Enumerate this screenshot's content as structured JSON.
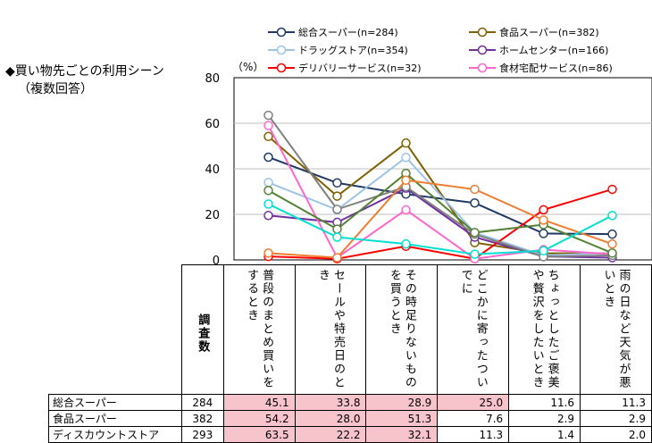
{
  "title_line1": "◆買い物先ごとの利用シーン",
  "title_line2": "（複数回答）",
  "unit": "（%）",
  "n_header": "調査数",
  "chart_data": {
    "type": "line",
    "ylim": [
      0,
      80
    ],
    "yticks": [
      "0",
      "20",
      "40",
      "60",
      "80"
    ],
    "categories": [
      "普段のまとめ買いをするとき",
      "セールや特売日のとき",
      "その時足りないものを買うとき",
      "どこかに寄ったついでに",
      "ちょっとしたご褒美や贅沢をしたいとき",
      "雨の日など天気が悪いとき"
    ],
    "series": [
      {
        "name": "総合スーパー(n=284)",
        "color": "#1f3864",
        "values": [
          45.1,
          33.8,
          28.9,
          25.0,
          11.6,
          11.3
        ]
      },
      {
        "name": "食品スーパー(n=382)",
        "color": "#7f6000",
        "values": [
          54.2,
          28.0,
          51.3,
          7.6,
          2.9,
          2.9
        ]
      },
      {
        "name": "ドラッグストア(n=354)",
        "color": "#9dc3e6",
        "values": [
          34.0,
          22.0,
          45.0,
          12.0,
          2.0,
          3.0
        ]
      },
      {
        "name": "ホームセンター(n=166)",
        "color": "#7030a0",
        "values": [
          19.5,
          16.5,
          31.5,
          10.0,
          1.5,
          1.0
        ]
      },
      {
        "name": "デリバリーサービス(n=32)",
        "color": "#ff0000",
        "values": [
          1.5,
          0.5,
          6.0,
          0.5,
          22.0,
          31.0
        ]
      },
      {
        "name": "食材宅配サービス(n=86)",
        "color": "#ff66cc",
        "values": [
          59.0,
          1.0,
          22.0,
          0.5,
          4.5,
          2.5
        ]
      },
      {
        "name": "ディスカウントストア(n=293)",
        "color": "#7f7f7f",
        "values": [
          63.5,
          22.2,
          32.1,
          11.3,
          1.4,
          2.0
        ]
      },
      {
        "name": "(unlabeled olive series)",
        "color": "#548235",
        "values": [
          30.5,
          13.5,
          38.0,
          12.0,
          15.5,
          3.0
        ]
      },
      {
        "name": "(unlabeled orange series)",
        "color": "#ed7d31",
        "values": [
          3.0,
          1.0,
          35.0,
          31.0,
          17.5,
          7.0
        ]
      },
      {
        "name": "(unlabeled cyan series)",
        "color": "#00e0d0",
        "values": [
          24.5,
          10.0,
          7.0,
          2.5,
          4.0,
          19.5
        ]
      }
    ]
  },
  "table": {
    "rows": [
      {
        "label": "総合スーパー",
        "n": "284",
        "values": [
          "45.1",
          "33.8",
          "28.9",
          "25.0",
          "11.6",
          "11.3"
        ],
        "hl": [
          1,
          1,
          1,
          1,
          0,
          0
        ]
      },
      {
        "label": "食品スーパー",
        "n": "382",
        "values": [
          "54.2",
          "28.0",
          "51.3",
          "7.6",
          "2.9",
          "2.9"
        ],
        "hl": [
          1,
          1,
          1,
          0,
          0,
          0
        ]
      },
      {
        "label": "ディスカウントストア",
        "n": "293",
        "values": [
          "63.5",
          "22.2",
          "32.1",
          "11.3",
          "1.4",
          "2.0"
        ],
        "hl": [
          1,
          1,
          1,
          0,
          0,
          0
        ]
      }
    ]
  }
}
